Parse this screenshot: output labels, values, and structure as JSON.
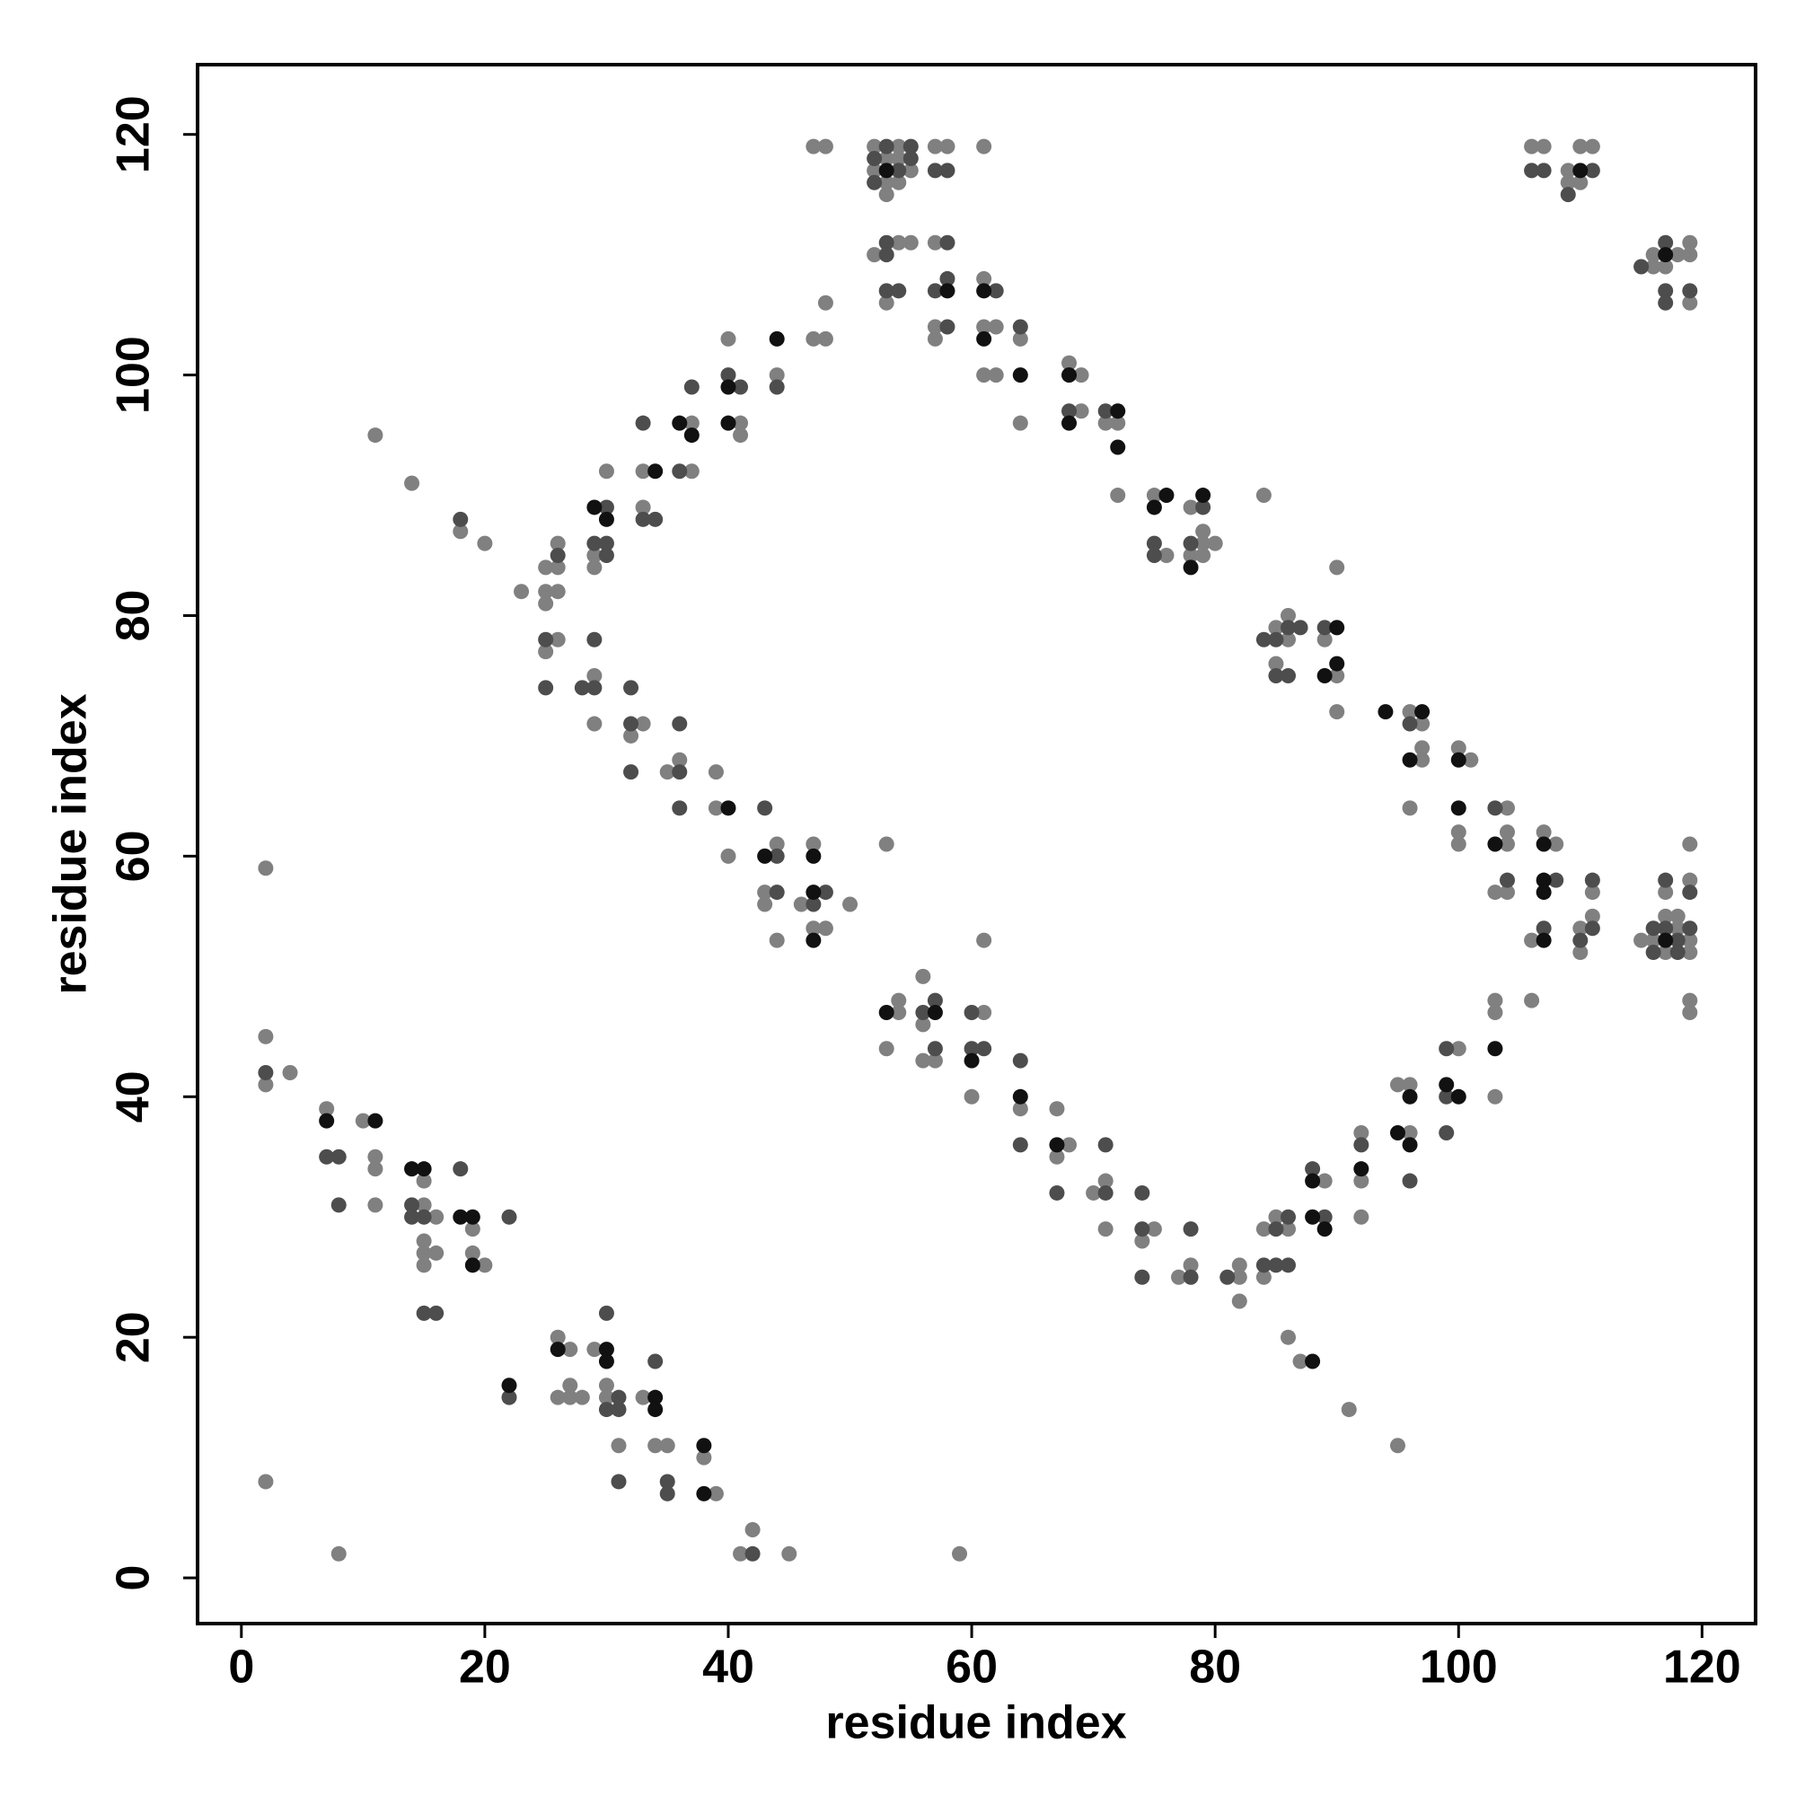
{
  "chart_data": {
    "type": "scatter",
    "x_label": "residue index",
    "y_label": "residue index",
    "xlim": [
      -3.6,
      124.4
    ],
    "ylim": [
      -3.8,
      125.8
    ],
    "xticks": [
      0,
      20,
      40,
      60,
      80,
      100,
      120
    ],
    "yticks": [
      0,
      20,
      40,
      60,
      80,
      100,
      120
    ],
    "series": [
      {
        "color": "#808080",
        "x": [
          2,
          2,
          2,
          4,
          2,
          8,
          7,
          10,
          11,
          11,
          11,
          15,
          16,
          15,
          15,
          15,
          16,
          15,
          19,
          19,
          20,
          26,
          27,
          26,
          27,
          28,
          27,
          29,
          30,
          30,
          31,
          33,
          34,
          35,
          38,
          39,
          41,
          42,
          45,
          59,
          11,
          14,
          18,
          20,
          23,
          25,
          25,
          25,
          26,
          26,
          26,
          26,
          25,
          29,
          29,
          29,
          29,
          30,
          33,
          32,
          33,
          33,
          37,
          37,
          35,
          36,
          39,
          39,
          41,
          41,
          40,
          40,
          44,
          43,
          43,
          44,
          44,
          46,
          47,
          47,
          48,
          50,
          47,
          48,
          48,
          47,
          48,
          52,
          54,
          53,
          54,
          52,
          55,
          53,
          54,
          53,
          57,
          58,
          61,
          52,
          54,
          55,
          57,
          53,
          57,
          57,
          61,
          61,
          62,
          61,
          62,
          64,
          64,
          53,
          68,
          69,
          69,
          71,
          72,
          72,
          75,
          76,
          78,
          79,
          80,
          79,
          78,
          79,
          84,
          85,
          86,
          86,
          85,
          89,
          90,
          90,
          90,
          96,
          97,
          97,
          97,
          96,
          100,
          101,
          100,
          100,
          104,
          104,
          104,
          103,
          104,
          106,
          107,
          108,
          110,
          111,
          111,
          110,
          106,
          115,
          116,
          117,
          117,
          118,
          118,
          119,
          119,
          117,
          119,
          119,
          119,
          119,
          106,
          107,
          109,
          109,
          110,
          111,
          110,
          116,
          116,
          117,
          118,
          119,
          119,
          119,
          54,
          54,
          53,
          56,
          56,
          56,
          57,
          61,
          60,
          61,
          64,
          67,
          68,
          67,
          70,
          71,
          71,
          75,
          74,
          77,
          78,
          82,
          82,
          82,
          84,
          85,
          86,
          84,
          86,
          87,
          89,
          91,
          92,
          92,
          92,
          95,
          96,
          96,
          95,
          100,
          103,
          103,
          103
        ],
        "values": [
          59,
          45,
          41,
          42,
          8,
          2,
          39,
          38,
          35,
          34,
          31,
          31,
          30,
          33,
          28,
          27,
          27,
          26,
          29,
          27,
          26,
          20,
          19,
          15,
          16,
          15,
          15,
          19,
          16,
          15,
          11,
          15,
          11,
          11,
          10,
          7,
          2,
          4,
          2,
          2,
          95,
          91,
          87,
          86,
          82,
          84,
          81,
          82,
          86,
          84,
          82,
          78,
          77,
          75,
          71,
          85,
          84,
          92,
          71,
          70,
          92,
          89,
          96,
          92,
          67,
          68,
          67,
          64,
          96,
          95,
          103,
          60,
          61,
          57,
          56,
          53,
          100,
          56,
          61,
          54,
          54,
          56,
          103,
          103,
          106,
          119,
          119,
          119,
          119,
          118,
          118,
          117,
          117,
          116,
          116,
          115,
          119,
          119,
          119,
          110,
          111,
          111,
          111,
          106,
          104,
          103,
          108,
          104,
          104,
          100,
          100,
          103,
          96,
          61,
          101,
          100,
          97,
          96,
          96,
          90,
          90,
          85,
          89,
          86,
          86,
          87,
          85,
          85,
          90,
          79,
          80,
          78,
          76,
          78,
          84,
          75,
          72,
          72,
          71,
          69,
          68,
          64,
          69,
          68,
          62,
          61,
          64,
          62,
          61,
          57,
          57,
          53,
          62,
          61,
          54,
          57,
          55,
          52,
          48,
          53,
          53,
          55,
          52,
          55,
          54,
          53,
          52,
          57,
          58,
          61,
          48,
          47,
          119,
          119,
          117,
          116,
          119,
          119,
          116,
          110,
          109,
          109,
          110,
          111,
          110,
          106,
          48,
          47,
          44,
          50,
          46,
          43,
          43,
          47,
          40,
          53,
          39,
          39,
          36,
          35,
          32,
          33,
          29,
          29,
          28,
          25,
          26,
          26,
          25,
          23,
          29,
          30,
          29,
          25,
          20,
          18,
          33,
          14,
          37,
          33,
          30,
          41,
          41,
          37,
          11,
          44,
          48,
          47,
          40
        ]
      },
      {
        "color": "#4d4d4d",
        "x": [
          2,
          7,
          8,
          8,
          14,
          14,
          15,
          18,
          22,
          15,
          16,
          22,
          30,
          30,
          31,
          31,
          31,
          34,
          35,
          35,
          42,
          18,
          26,
          25,
          25,
          29,
          28,
          29,
          30,
          29,
          30,
          30,
          32,
          32,
          32,
          33,
          33,
          34,
          36,
          37,
          36,
          36,
          36,
          40,
          41,
          43,
          44,
          44,
          44,
          47,
          48,
          53,
          55,
          52,
          55,
          54,
          52,
          57,
          58,
          53,
          53,
          58,
          53,
          54,
          57,
          58,
          58,
          62,
          64,
          68,
          71,
          75,
          75,
          79,
          78,
          84,
          85,
          86,
          87,
          85,
          86,
          89,
          96,
          103,
          104,
          108,
          107,
          110,
          111,
          111,
          116,
          116,
          117,
          118,
          118,
          119,
          117,
          119,
          106,
          107,
          109,
          111,
          115,
          117,
          117,
          117,
          119,
          56,
          57,
          57,
          60,
          60,
          61,
          64,
          64,
          67,
          71,
          71,
          74,
          74,
          74,
          78,
          78,
          81,
          85,
          86,
          84,
          85,
          86,
          88,
          89,
          92,
          96,
          99,
          99,
          99
        ],
        "values": [
          42,
          35,
          35,
          31,
          31,
          30,
          30,
          34,
          30,
          22,
          22,
          15,
          22,
          14,
          15,
          14,
          8,
          18,
          8,
          7,
          2,
          88,
          85,
          78,
          74,
          78,
          74,
          74,
          89,
          86,
          86,
          85,
          74,
          71,
          67,
          96,
          88,
          88,
          92,
          99,
          71,
          67,
          64,
          100,
          99,
          64,
          60,
          57,
          99,
          56,
          57,
          119,
          119,
          118,
          118,
          117,
          116,
          117,
          117,
          110,
          111,
          111,
          107,
          107,
          107,
          108,
          104,
          107,
          104,
          97,
          97,
          86,
          85,
          89,
          86,
          78,
          78,
          79,
          79,
          75,
          75,
          79,
          71,
          64,
          58,
          58,
          54,
          53,
          58,
          54,
          54,
          52,
          54,
          53,
          52,
          54,
          58,
          57,
          117,
          117,
          115,
          117,
          109,
          111,
          107,
          106,
          107,
          47,
          48,
          44,
          47,
          44,
          44,
          43,
          36,
          32,
          32,
          36,
          32,
          29,
          25,
          25,
          29,
          25,
          29,
          30,
          26,
          26,
          26,
          34,
          30,
          36,
          33,
          44,
          40,
          37
        ]
      },
      {
        "color": "#111111",
        "x": [
          7,
          11,
          14,
          15,
          18,
          19,
          19,
          22,
          26,
          30,
          30,
          34,
          34,
          38,
          38,
          29,
          30,
          34,
          36,
          37,
          40,
          40,
          40,
          43,
          44,
          47,
          47,
          47,
          53,
          58,
          61,
          61,
          64,
          68,
          68,
          72,
          72,
          76,
          75,
          79,
          78,
          90,
          89,
          90,
          94,
          97,
          96,
          100,
          100,
          103,
          107,
          107,
          107,
          107,
          117,
          110,
          117,
          53,
          57,
          60,
          64,
          67,
          88,
          88,
          88,
          89,
          92,
          96,
          95,
          96,
          99,
          100,
          103
        ],
        "values": [
          38,
          38,
          34,
          34,
          30,
          30,
          26,
          16,
          19,
          19,
          18,
          15,
          14,
          11,
          7,
          89,
          88,
          92,
          96,
          95,
          64,
          99,
          96,
          60,
          103,
          60,
          57,
          53,
          117,
          107,
          107,
          103,
          100,
          100,
          96,
          97,
          94,
          90,
          89,
          90,
          84,
          79,
          75,
          76,
          72,
          72,
          68,
          68,
          64,
          61,
          61,
          58,
          57,
          53,
          53,
          117,
          110,
          47,
          47,
          43,
          40,
          36,
          18,
          33,
          30,
          29,
          34,
          40,
          37,
          36,
          41,
          40,
          44
        ]
      }
    ]
  }
}
